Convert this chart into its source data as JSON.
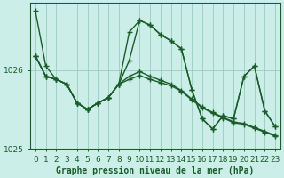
{
  "xlabel": "Graphe pression niveau de la mer (hPa)",
  "bg_color": "#cceee8",
  "grid_color": "#99ccbb",
  "line_color": "#1a5c2a",
  "hours": [
    0,
    1,
    2,
    3,
    4,
    5,
    6,
    7,
    8,
    9,
    10,
    11,
    12,
    13,
    14,
    15,
    16,
    17,
    18,
    19,
    20,
    21,
    22,
    23
  ],
  "s1_y": [
    1026.75,
    1026.05,
    1025.88,
    1025.82,
    1025.58,
    1025.5,
    1025.58,
    1025.65,
    1025.82,
    1026.48,
    1026.63,
    1026.57,
    1026.45,
    1026.37,
    1026.27,
    1025.75,
    1025.38,
    1025.25,
    1025.42,
    1025.38,
    1025.92,
    1026.05,
    1025.48,
    1025.28
  ],
  "s2_y": [
    1026.18,
    1025.92,
    1025.88,
    1025.82,
    1025.58,
    1025.5,
    1025.58,
    1025.65,
    1025.82,
    1026.12,
    1026.63,
    1026.57,
    1026.45,
    1026.37,
    1026.27,
    1025.75,
    1025.38,
    1025.25,
    1025.42,
    1025.38,
    1025.92,
    1026.05,
    1025.48,
    1025.28
  ],
  "s3_y": [
    1026.18,
    1025.92,
    1025.88,
    1025.82,
    1025.58,
    1025.5,
    1025.58,
    1025.65,
    1025.82,
    1025.92,
    1025.98,
    1025.92,
    1025.87,
    1025.82,
    1025.74,
    1025.63,
    1025.53,
    1025.46,
    1025.4,
    1025.34,
    1025.32,
    1025.27,
    1025.22,
    1025.17
  ],
  "s4_y": [
    1026.18,
    1025.92,
    1025.88,
    1025.82,
    1025.58,
    1025.5,
    1025.58,
    1025.65,
    1025.82,
    1025.88,
    1025.93,
    1025.88,
    1025.84,
    1025.8,
    1025.73,
    1025.62,
    1025.52,
    1025.45,
    1025.39,
    1025.33,
    1025.31,
    1025.26,
    1025.21,
    1025.16
  ],
  "ylim": [
    1025.32,
    1026.85
  ],
  "yticks": [
    1025,
    1026
  ],
  "ytick_labels": [
    "1025",
    "1026"
  ],
  "xlim": [
    -0.5,
    23.5
  ],
  "linewidth": 1.0,
  "marker": "+",
  "marker_size": 4,
  "marker_edge_width": 1.0,
  "xlabel_fontsize": 7,
  "tick_fontsize": 6.5
}
